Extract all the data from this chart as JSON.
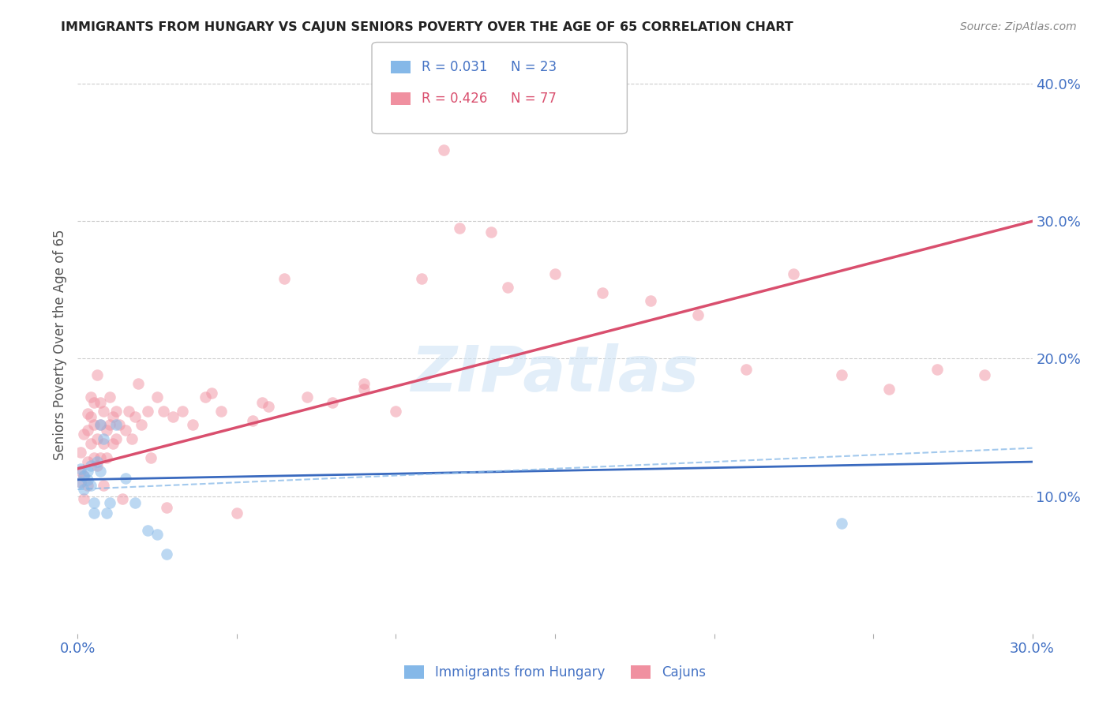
{
  "title": "IMMIGRANTS FROM HUNGARY VS CAJUN SENIORS POVERTY OVER THE AGE OF 65 CORRELATION CHART",
  "source": "Source: ZipAtlas.com",
  "ylabel": "Seniors Poverty Over the Age of 65",
  "xmin": 0.0,
  "xmax": 0.3,
  "ymin": 0.0,
  "ymax": 0.42,
  "legend_r1": "0.031",
  "legend_n1": "23",
  "legend_r2": "0.426",
  "legend_n2": "77",
  "legend_label1": "Immigrants from Hungary",
  "legend_label2": "Cajuns",
  "watermark": "ZIPatlas",
  "color_blue": "#85b8e8",
  "color_pink": "#f090a0",
  "color_blue_line": "#3a6abf",
  "color_pink_line": "#d94f6e",
  "color_blue_dashed": "#85b8e8",
  "axis_label_color": "#4472c4",
  "hungary_x": [
    0.001,
    0.001,
    0.002,
    0.002,
    0.003,
    0.003,
    0.004,
    0.004,
    0.005,
    0.005,
    0.006,
    0.007,
    0.007,
    0.008,
    0.009,
    0.01,
    0.012,
    0.015,
    0.018,
    0.022,
    0.025,
    0.028,
    0.24
  ],
  "hungary_y": [
    0.11,
    0.12,
    0.105,
    0.115,
    0.118,
    0.112,
    0.108,
    0.122,
    0.088,
    0.095,
    0.125,
    0.152,
    0.118,
    0.142,
    0.088,
    0.095,
    0.152,
    0.113,
    0.095,
    0.075,
    0.072,
    0.058,
    0.08
  ],
  "cajun_x": [
    0.001,
    0.001,
    0.001,
    0.002,
    0.002,
    0.002,
    0.003,
    0.003,
    0.003,
    0.003,
    0.004,
    0.004,
    0.004,
    0.005,
    0.005,
    0.005,
    0.006,
    0.006,
    0.006,
    0.007,
    0.007,
    0.007,
    0.008,
    0.008,
    0.008,
    0.009,
    0.009,
    0.01,
    0.01,
    0.011,
    0.011,
    0.012,
    0.012,
    0.013,
    0.014,
    0.015,
    0.016,
    0.017,
    0.018,
    0.019,
    0.02,
    0.022,
    0.023,
    0.025,
    0.027,
    0.03,
    0.033,
    0.036,
    0.04,
    0.045,
    0.05,
    0.058,
    0.065,
    0.072,
    0.08,
    0.09,
    0.1,
    0.115,
    0.13,
    0.15,
    0.165,
    0.18,
    0.195,
    0.21,
    0.225,
    0.24,
    0.255,
    0.27,
    0.285,
    0.12,
    0.135,
    0.09,
    0.108,
    0.055,
    0.042,
    0.028,
    0.06
  ],
  "cajun_y": [
    0.118,
    0.132,
    0.11,
    0.145,
    0.115,
    0.098,
    0.125,
    0.148,
    0.16,
    0.108,
    0.138,
    0.158,
    0.172,
    0.128,
    0.152,
    0.168,
    0.122,
    0.142,
    0.188,
    0.128,
    0.152,
    0.168,
    0.138,
    0.162,
    0.108,
    0.128,
    0.148,
    0.152,
    0.172,
    0.138,
    0.158,
    0.142,
    0.162,
    0.152,
    0.098,
    0.148,
    0.162,
    0.142,
    0.158,
    0.182,
    0.152,
    0.162,
    0.128,
    0.172,
    0.162,
    0.158,
    0.162,
    0.152,
    0.172,
    0.162,
    0.088,
    0.168,
    0.258,
    0.172,
    0.168,
    0.178,
    0.162,
    0.352,
    0.292,
    0.262,
    0.248,
    0.242,
    0.232,
    0.192,
    0.262,
    0.188,
    0.178,
    0.192,
    0.188,
    0.295,
    0.252,
    0.182,
    0.258,
    0.155,
    0.175,
    0.092,
    0.165
  ],
  "cajun_line_start": 0.12,
  "cajun_line_end": 0.3,
  "hungary_line_start": 0.112,
  "hungary_line_end": 0.125,
  "dashed_line_start": 0.105,
  "dashed_line_end": 0.135
}
